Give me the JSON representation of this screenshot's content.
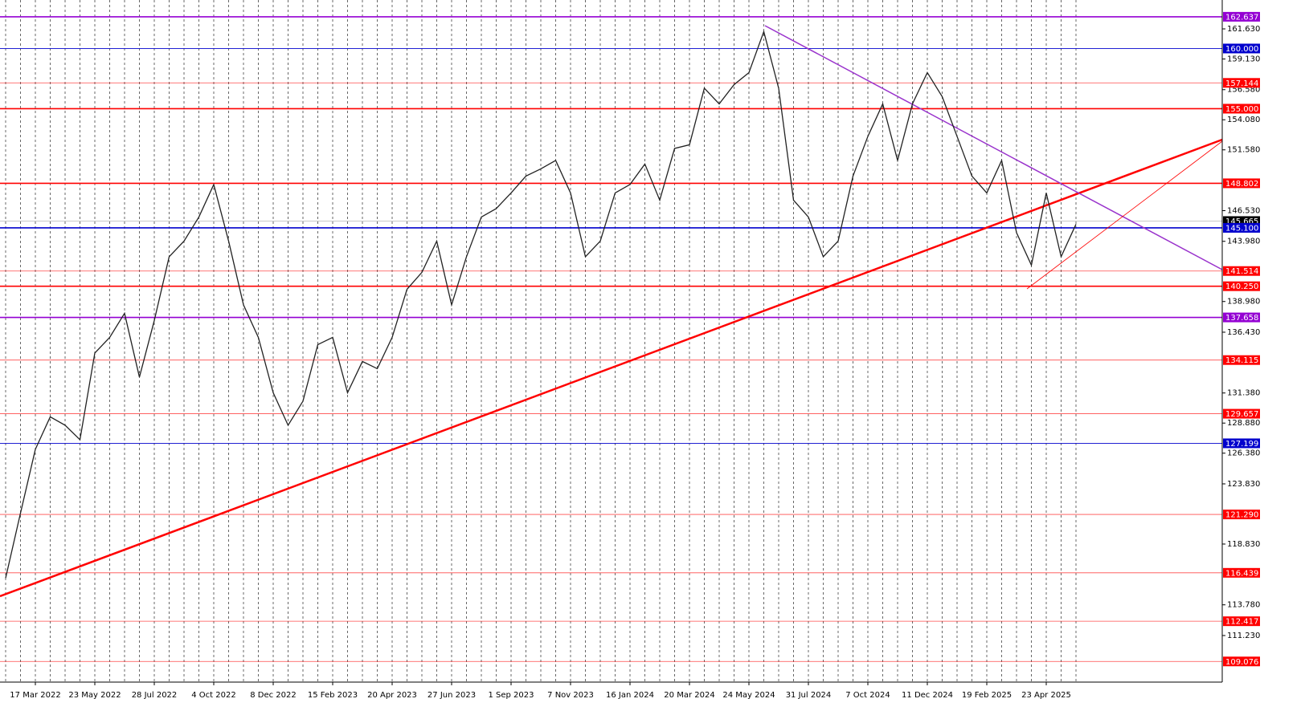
{
  "chart_data": {
    "type": "line",
    "categories": [
      null,
      null,
      "17 Mar 2022",
      null,
      null,
      null,
      "23 May 2022",
      null,
      null,
      null,
      "28 Jul 2022",
      null,
      null,
      null,
      "4 Oct 2022",
      null,
      null,
      null,
      "8 Dec 2022",
      null,
      null,
      null,
      "15 Feb 2023",
      null,
      null,
      null,
      "20 Apr 2023",
      null,
      null,
      null,
      "27 Jun 2023",
      null,
      null,
      null,
      "1 Sep 2023",
      null,
      null,
      null,
      "7 Nov 2023",
      null,
      null,
      null,
      "16 Jan 2024",
      null,
      null,
      null,
      "20 Mar 2024",
      null,
      null,
      null,
      "24 May 2024",
      null,
      null,
      null,
      "31 Jul 2024",
      null,
      null,
      null,
      "7 Oct 2024",
      null,
      null,
      null,
      "11 Dec 2024",
      null,
      null,
      null,
      "19 Feb 2025",
      null,
      null,
      null,
      "23 Apr 2025",
      null,
      null
    ],
    "series": [
      {
        "color": "#222222",
        "values": [
          116.0,
          121.4,
          126.7,
          129.4,
          128.7,
          127.5,
          134.7,
          136.0,
          138.0,
          132.7,
          137.4,
          142.7,
          144.0,
          146.0,
          148.7,
          144.0,
          138.7,
          136.0,
          131.4,
          128.7,
          130.7,
          135.4,
          136.0,
          131.4,
          134.0,
          133.4,
          136.0,
          140.0,
          141.4,
          144.0,
          138.7,
          142.7,
          146.0,
          146.7,
          148.0,
          149.4,
          150.0,
          150.7,
          148.0,
          142.7,
          144.0,
          148.0,
          148.7,
          150.4,
          147.4,
          151.7,
          152.0,
          156.7,
          155.4,
          157.0,
          158.0,
          161.4,
          156.7,
          147.4,
          146.0,
          142.7,
          144.0,
          149.4,
          152.7,
          155.4,
          150.7,
          155.4,
          158.0,
          156.0,
          152.7,
          149.4,
          148.0,
          150.7,
          144.7,
          142.0,
          148.0,
          142.7,
          145.4
        ]
      }
    ],
    "ylim": [
      107.36,
      164.03
    ],
    "yticks": [
      {
        "value": 161.63,
        "label": "161.630"
      },
      {
        "value": 159.13,
        "label": "159.130"
      },
      {
        "value": 156.58,
        "label": "156.580"
      },
      {
        "value": 154.08,
        "label": "154.080"
      },
      {
        "value": 151.58,
        "label": "151.580"
      },
      {
        "value": 146.53,
        "label": "146.530"
      },
      {
        "value": 143.98,
        "label": "143.980"
      },
      {
        "value": 138.98,
        "label": "138.980"
      },
      {
        "value": 136.43,
        "label": "136.430"
      },
      {
        "value": 131.38,
        "label": "131.380"
      },
      {
        "value": 128.88,
        "label": "128.880"
      },
      {
        "value": 126.38,
        "label": "126.380"
      },
      {
        "value": 123.83,
        "label": "123.830"
      },
      {
        "value": 118.83,
        "label": "118.830"
      },
      {
        "value": 113.78,
        "label": "113.780"
      },
      {
        "value": 111.23,
        "label": "111.230"
      }
    ],
    "levels": [
      {
        "value": 162.637,
        "label": "162.637",
        "color": "#9400d3",
        "style": "thick"
      },
      {
        "value": 160,
        "label": "160.000",
        "color": "#0000cd",
        "style": "thin"
      },
      {
        "value": 157.144,
        "label": "157.144",
        "color": "#ff0000",
        "style": "thin"
      },
      {
        "value": 155,
        "label": "155.000",
        "color": "#ff0000",
        "style": "thick"
      },
      {
        "value": 148.802,
        "label": "148.802",
        "color": "#ff0000",
        "style": "thick"
      },
      {
        "value": 145.665,
        "label": "145.665",
        "color": "#000000",
        "style": "price"
      },
      {
        "value": 145.1,
        "label": "145.100",
        "color": "#0000cd",
        "style": "thick"
      },
      {
        "value": 141.514,
        "label": "141.514",
        "color": "#ff0000",
        "style": "thin"
      },
      {
        "value": 140.25,
        "label": "140.250",
        "color": "#ff0000",
        "style": "thick"
      },
      {
        "value": 137.658,
        "label": "137.658",
        "color": "#9400d3",
        "style": "thick"
      },
      {
        "value": 134.115,
        "label": "134.115",
        "color": "#ff0000",
        "style": "thin"
      },
      {
        "value": 129.657,
        "label": "129.657",
        "color": "#ff0000",
        "style": "thin"
      },
      {
        "value": 127.199,
        "label": "127.199",
        "color": "#0000cd",
        "style": "thin"
      },
      {
        "value": 121.29,
        "label": "121.290",
        "color": "#ff0000",
        "style": "thin"
      },
      {
        "value": 116.439,
        "label": "116.439",
        "color": "#ff0000",
        "style": "thin"
      },
      {
        "value": 112.417,
        "label": "112.417",
        "color": "#ff0000",
        "style": "thin"
      },
      {
        "value": 109.076,
        "label": "109.076",
        "color": "#ff0000",
        "style": "thin"
      }
    ],
    "grid": true
  }
}
